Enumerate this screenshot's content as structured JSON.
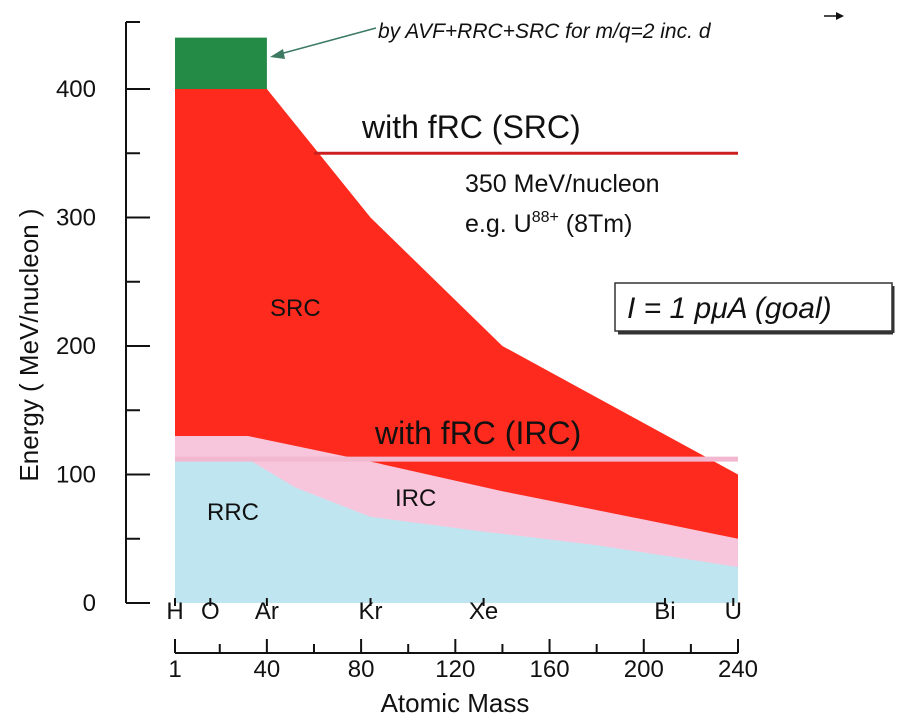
{
  "chart_data": {
    "type": "area",
    "xlabel": "Atomic Mass",
    "ylabel": "Energy ( MeV/nucleon )",
    "xlim": [
      1,
      240
    ],
    "ylim": [
      0,
      440
    ],
    "x_ticks": [
      1,
      40,
      80,
      120,
      160,
      200,
      240
    ],
    "y_ticks": [
      0,
      100,
      200,
      300,
      400
    ],
    "elements": [
      {
        "label": "H",
        "mass": 1
      },
      {
        "label": "O",
        "mass": 16
      },
      {
        "label": "Ar",
        "mass": 40
      },
      {
        "label": "Kr",
        "mass": 84
      },
      {
        "label": "Xe",
        "mass": 132
      },
      {
        "label": "Bi",
        "mass": 209
      },
      {
        "label": "U",
        "mass": 238
      }
    ],
    "series": [
      {
        "name": "RRC",
        "color": "#bfe6f0",
        "x": [
          1,
          32,
          52,
          84,
          130,
          180,
          240
        ],
        "y": [
          112,
          112,
          90,
          67,
          56,
          45,
          28
        ]
      },
      {
        "name": "IRC",
        "color": "#f7c6dc",
        "x": [
          1,
          32,
          84,
          140,
          200,
          240
        ],
        "y": [
          130,
          130,
          110,
          87,
          65,
          50
        ]
      },
      {
        "name": "SRC",
        "color": "#ff2a1e",
        "x": [
          1,
          40,
          84,
          140,
          200,
          240
        ],
        "y": [
          400,
          400,
          300,
          200,
          140,
          100
        ]
      },
      {
        "color": "#238b45",
        "x": [
          1,
          40
        ],
        "y": [
          440,
          440
        ]
      }
    ],
    "reference_lines": [
      {
        "label": "with fRC (SRC)",
        "y": 350,
        "x_from": 60,
        "x_to": 240,
        "color": "#cc2020"
      },
      {
        "label": "with fRC (IRC)",
        "y": 112,
        "x_from": 1,
        "x_to": 240,
        "color": "#f2b8cf"
      }
    ],
    "annotations": {
      "green_label": "by AVF+RRC+SRC for m/q=2 inc.",
      "green_label_symbol": "d",
      "src_energy": "350 MeV/nucleon",
      "src_example_pre": "e.g. U",
      "src_example_sup": "88+",
      "src_example_post": " (8Tm)",
      "goal": "I = 1 pμA (goal)"
    }
  }
}
